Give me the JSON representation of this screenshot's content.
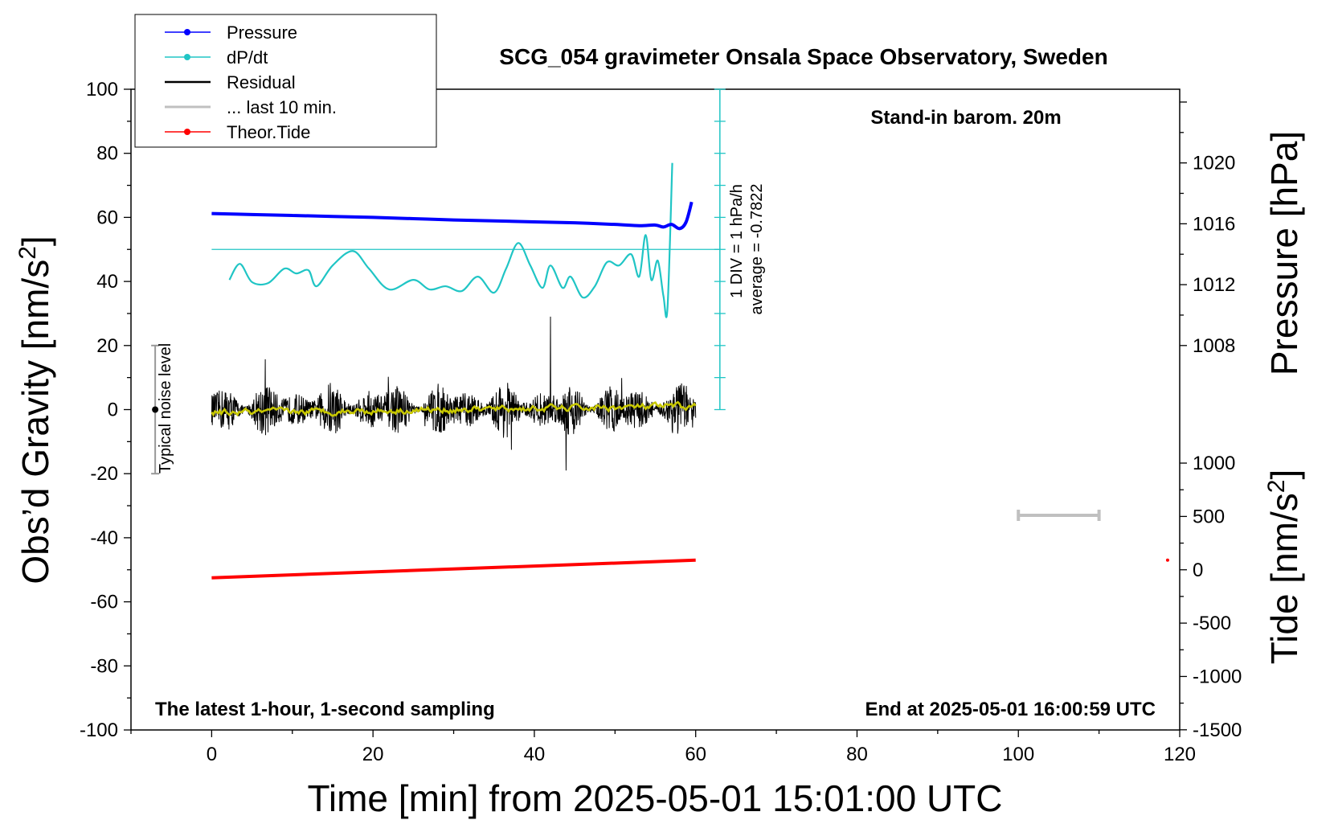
{
  "chart_data": {
    "type": "line",
    "title": "SCG_054 gravimeter Onsala Space Observatory, Sweden",
    "xlabel": "Time [min] from 2025-05-01 15:01:00 UTC",
    "ylabel_left": "Obs’d Gravity [nm/s²]",
    "ylabel_right_top": "Pressure [hPa]",
    "ylabel_right_bottom": "Tide [nm/s²]",
    "xlim": [
      -10,
      120
    ],
    "ylim": [
      -100,
      100
    ],
    "x_ticks": [
      0,
      20,
      40,
      60,
      80,
      100,
      120
    ],
    "y_ticks": [
      -100,
      -80,
      -60,
      -40,
      -20,
      0,
      20,
      40,
      60,
      80,
      100
    ],
    "pressure_axis": {
      "ticks": [
        1008,
        1012,
        1016,
        1020
      ],
      "gravity_per_hPa": 4.75,
      "gravity_at_1008": 20
    },
    "tide_axis": {
      "ticks": [
        1000,
        500,
        0,
        -500,
        -1000,
        -1500
      ],
      "gravity_per_unit": 0.0333,
      "gravity_at_0": -50
    },
    "annotations": {
      "top_right": "Stand-in barom. 20m",
      "bottom_left": "The latest 1-hour, 1-second sampling",
      "bottom_right": "End at 2025-05-01 16:00:59 UTC",
      "dpdt_scale": "1 DIV = 1 hPa/h",
      "dpdt_average": "average = -0.7822",
      "noise": "Typical noise level"
    },
    "noise_bar": {
      "x": -7,
      "y_range": [
        -20,
        20
      ],
      "y_center": 0
    },
    "dpdt_reference_line": {
      "y": 50,
      "x_range": [
        0,
        63
      ]
    },
    "dpdt_scale_axis": {
      "x": 63,
      "y_range": [
        0,
        100
      ],
      "div": 10
    },
    "last10_bar": {
      "x_range": [
        100,
        110
      ],
      "y": -33
    },
    "tide_dot": {
      "x": 118.5,
      "y": -47
    },
    "legend": [
      {
        "label": "Pressure",
        "color": "#0000ff",
        "marker": "dot"
      },
      {
        "label": "dP/dt",
        "color": "#20c5c5",
        "marker": "dot"
      },
      {
        "label": "Residual",
        "color": "#000000",
        "marker": "none"
      },
      {
        "label": "... last 10 min.",
        "color": "#c0c0c0",
        "marker": "none"
      },
      {
        "label": "Theor.Tide",
        "color": "#ff0000",
        "marker": "dot"
      }
    ],
    "series": [
      {
        "name": "Pressure",
        "color": "#0000ff",
        "x": [
          0,
          5,
          10,
          15,
          20,
          25,
          30,
          35,
          40,
          45,
          50,
          53,
          55,
          56,
          57,
          58,
          58.8,
          59.5
        ],
        "y": [
          61.2,
          60.9,
          60.6,
          60.3,
          60.0,
          59.6,
          59.2,
          58.9,
          58.6,
          58.3,
          57.8,
          57.4,
          57.6,
          57.0,
          57.8,
          56.5,
          58.5,
          64.8
        ]
      },
      {
        "name": "dP/dt",
        "color": "#20c5c5",
        "x": [
          2.2,
          3.5,
          5,
          7,
          9,
          10.5,
          12,
          13,
          15,
          17.5,
          19.5,
          22,
          25,
          27,
          29,
          31,
          33,
          35,
          36.5,
          38,
          39.5,
          41,
          42,
          43.5,
          44.5,
          46,
          47.5,
          49,
          50.5,
          52,
          53,
          53.8,
          54.5,
          55.3,
          56,
          56.5,
          57.1
        ],
        "y": [
          40.5,
          45.5,
          39.8,
          39.5,
          44,
          42.5,
          43.5,
          38.5,
          45,
          49.5,
          44,
          37.5,
          40.5,
          37.5,
          38.5,
          37,
          41.5,
          36.5,
          44,
          52,
          45,
          38,
          45,
          38,
          41.5,
          35,
          38.5,
          46,
          45,
          48.5,
          41.5,
          54.5,
          40.5,
          46.5,
          35.5,
          31.5,
          77
        ]
      },
      {
        "name": "Residual",
        "color": "#000000",
        "x_range": [
          0,
          60
        ],
        "amplitude": 9
      },
      {
        "name": "... last 10 min.",
        "color": "#c8c800",
        "x_range": [
          0,
          60
        ],
        "y_start": -1,
        "y_end": 1
      },
      {
        "name": "Theor.Tide",
        "color": "#ff0000",
        "x": [
          0,
          60
        ],
        "y": [
          -52.5,
          -47
        ]
      }
    ]
  }
}
